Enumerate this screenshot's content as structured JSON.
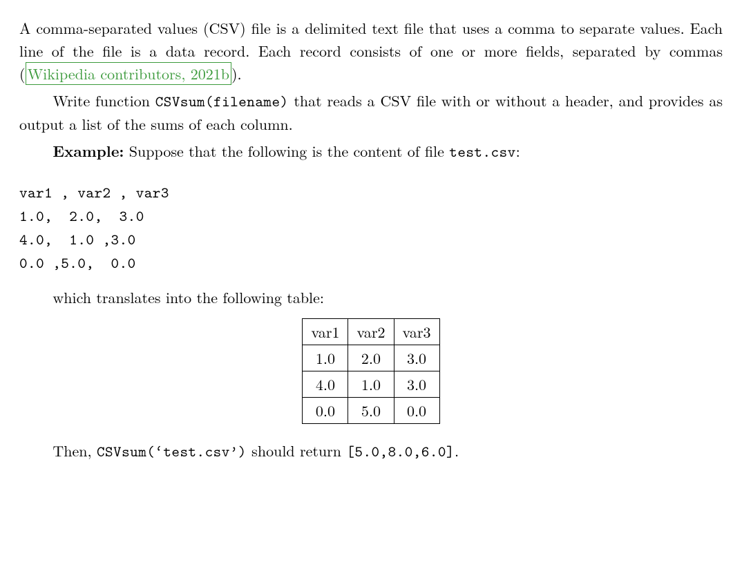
{
  "para1": {
    "lead": "A comma-separated values (CSV) file is a delimited text file that uses a comma to separate values. Each line of the file is a data record. Each record consists of one or more fields, separated by commas (",
    "cite_text": "Wikipedia contributors, 2021b",
    "cite_color": "#3b9a3b",
    "tail": ")."
  },
  "para2": {
    "lead": "Write function ",
    "code": "CSVsum(filename)",
    "tail": " that reads a CSV file with or without a header, and provides as output a list of the sums of each column."
  },
  "para3": {
    "label": "Example:",
    "mid": " Suppose that the following is the content of file ",
    "code": "test.csv",
    "tail": ":"
  },
  "csv_raw": "var1 , var2 , var3\n1.0,  2.0,  3.0\n4.0,  1.0 ,3.0\n0.0 ,5.0,  0.0",
  "para4": "which translates into the following table:",
  "table": {
    "columns": [
      "var1",
      "var2",
      "var3"
    ],
    "rows": [
      [
        "1.0",
        "2.0",
        "3.0"
      ],
      [
        "4.0",
        "1.0",
        "3.0"
      ],
      [
        "0.0",
        "5.0",
        "0.0"
      ]
    ],
    "border_color": "#000000",
    "cell_padding": "2px 12px",
    "font_size": 22
  },
  "para5": {
    "lead": "Then, ",
    "code": "CSVsum(‘test.csv’)",
    "mid": " should return ",
    "result": "[5.0,8.0,6.0]",
    "tail": "."
  },
  "style": {
    "body_font_size": 22,
    "body_color": "#000000",
    "background_color": "#ffffff",
    "mono_font": "Courier New",
    "citation_border_color": "#3b9a3b"
  }
}
